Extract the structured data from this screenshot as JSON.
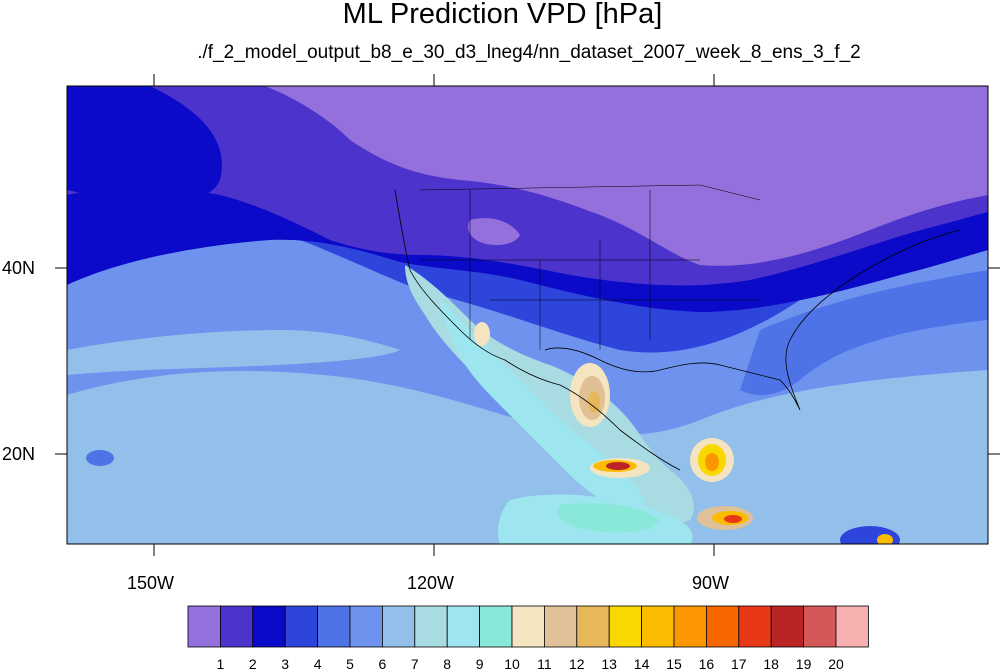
{
  "title": "ML Prediction VPD [hPa]",
  "subtitle": "./f_2_model_output_b8_e_30_d3_lneg4/nn_dataset_2007_week_8_ens_3_f_2",
  "x_ticks": [
    "150W",
    "120W",
    "90W"
  ],
  "y_ticks": [
    "40N",
    "20N"
  ],
  "colorbar": {
    "labels": [
      "1",
      "2",
      "3",
      "4",
      "5",
      "6",
      "7",
      "8",
      "9",
      "10",
      "11",
      "12",
      "13",
      "14",
      "15",
      "16",
      "17",
      "18",
      "19",
      "20"
    ],
    "colors": [
      "#9370db",
      "#4b33cc",
      "#0a0ac8",
      "#2e45dc",
      "#4d73e6",
      "#6e93ee",
      "#92c0ea",
      "#a8dce2",
      "#9de6ef",
      "#8ae8d8",
      "#f4e4c0",
      "#e0c096",
      "#e6b85a",
      "#f8d800",
      "#fbbc00",
      "#fb9600",
      "#f86600",
      "#e83818",
      "#ba2424",
      "#d45858",
      "#f7b0b0"
    ]
  }
}
